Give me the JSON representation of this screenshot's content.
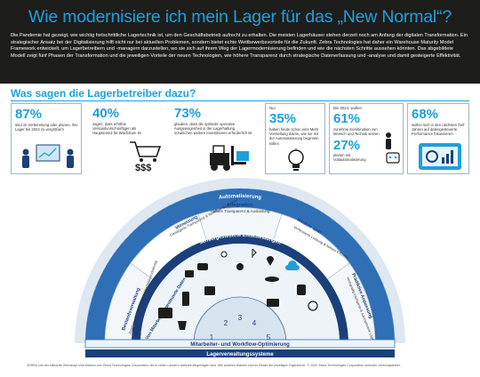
{
  "title": "Wie modernisiere ich mein Lager für das „New Normal“?",
  "intro": "Die Pandemie hat gezeigt, wie wichtig fortschrittliche Lagertechnik ist, um den Geschäftsbetrieb aufrecht zu erhalten. Die meisten Lagerhäuser stehen derzeit noch am Anfang der digitalen Transformation. Ein strategischer Ansatz bei der Digitalisierung hilft nicht nur bei aktuellen Problemen, sondern bietet echte Wettbewerbsvorteile für die Zukunft. Zebra Technologies hat daher ein Warehouse Maturity Model Framework entwickelt, um Lagerbetreibern und -managern darzustellen, wo sie sich auf ihrem Weg der Lagermodernisierung befinden und wie die nächsten Schritte aussehen könnten. Das abgebildete Modell zeigt fünf Phasen der Transformation und die jeweiligen Vorteile der neuen Technologien, wie höhere Transparenz durch strategische Datenerfassung und -analyse und damit gesteigerte Effektivität.",
  "subheading": "Was sagen die Lagerbetreiber dazu?",
  "stats": [
    {
      "pct": "87%",
      "text": "sind im Vorbereitung oder planen, ihre Lager bis 2024 zu vergrößern"
    },
    {
      "pct": "40%",
      "text": "sagen, dass erhöhte Versandvorschreiftigen als Hauptanreiz für Wachstum ist"
    },
    {
      "pct": "73%",
      "text": "glauben, dass die optimale operative Ausgewogenheit in der Lagerhaltung inzwischen weitere Investitionen erforderlich ist"
    },
    {
      "pre": "Nur",
      "pct": "35%",
      "text": "haben heute schon eine Mehr Vorstellung davon, wie sie mit der Automatisierung beginnen sollen"
    },
    {
      "pre": "Bis 2024, wollen",
      "pct": "61%",
      "text": "zunehme Kombination von Mensch und Technik setzen",
      "pct2": "27%",
      "text2": "planen mit Vollautomatisierung"
    },
    {
      "pct": "68%",
      "text": "wollen sich in den nächsten fünf Jahren auf datengesteuerte Performance fokussieren"
    }
  ],
  "diagram": {
    "band_top": "Automatisierung",
    "band_mid": "Sensorgesteuerte Entscheidungen",
    "band_left": "Von Mitarbeitern gesteuerte Daten",
    "band_bottom": "Mitarbeiter- und Workflow-Optimierung",
    "base": "Lagerverwaltungssysteme",
    "integration_title": "Integration",
    "integration_sub": "Höhere Transparenz & Auslastung",
    "vernetzung_title": "Vernetzung",
    "vernetzung_sub": "Gesteigerte Transparenz & Workflow-Konsistenz",
    "bestand_title": "Bestandsverwaltung",
    "bestand_sub": "Zunehmende Transparenz & Mitarbeiterproduktivität",
    "reaktiv_title": "Reaktiv sein",
    "reaktiv_sub": "Verbesserte Leistung & höhere Effizienz",
    "prediktiv_title": "Prädiktive Anpassung",
    "prediktiv_sub": "Hochgradig intelligente & automatisierte Lager",
    "icons": [
      "Tablets",
      "Handheld-Computer",
      "Barcode-Scanner",
      "Wearables",
      "Fahrzeugcomputer",
      "RFID",
      "Sensoren",
      "Bluetooth",
      "Standort",
      "Lesegeräte",
      "Cloud",
      "Robotik",
      "Maschinelles Sehen",
      "Mobile Druckerlösungen",
      "Intelligente Automation",
      "Smarte Sensoren",
      "Vorkonfektionierte Etikettendrucker",
      "Sichtbarkeit"
    ],
    "steps": [
      "1",
      "2",
      "3",
      "4",
      "5"
    ]
  },
  "footer": "ZEBRA und der stilisierte Zebrakopf sind Marken von Zebra Technologies Corporation, die in vielen Ländern weltweit eingetragen sind. Alle anderen Marken sind im Besitz der jeweiligen Eigentümer. © 2020 Zebra Technologies Corporation und/oder Verbundpartner.",
  "colors": {
    "accent": "#1ea0dc",
    "dark": "#1d1d1b",
    "navy": "#1b3f7a",
    "band": "#2f6fb6"
  }
}
